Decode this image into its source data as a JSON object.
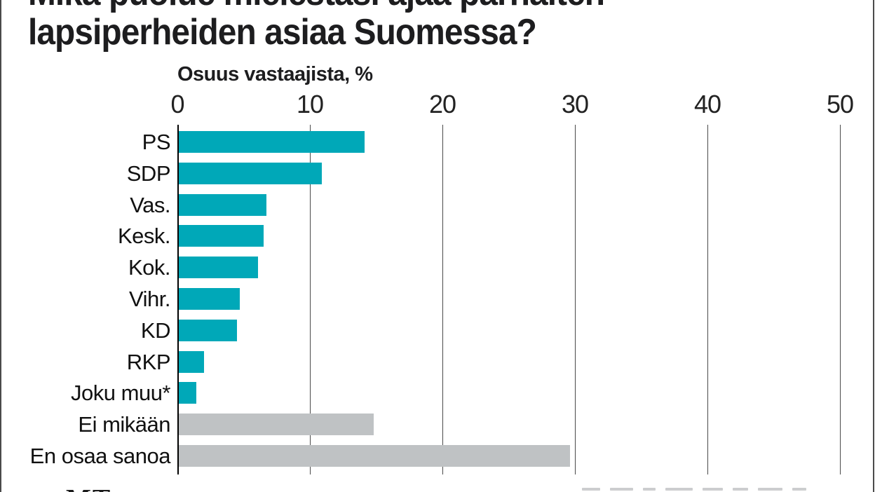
{
  "page": {
    "title_line1": "Mikä puolue mielestäsi ajaa parhaiten",
    "title_line2": "lapsiperheiden asiaa Suomessa?",
    "watermark": "MT"
  },
  "chart_data": {
    "type": "bar",
    "orientation": "horizontal",
    "title": "Mikä puolue mielestäsi ajaa parhaiten lapsiperheiden asiaa Suomessa?",
    "axis_label": "Osuus vastaajista, %",
    "x_ticks": [
      0,
      10,
      20,
      30,
      40,
      50
    ],
    "xlim": [
      0,
      50
    ],
    "grid": true,
    "legend": "none",
    "categories": [
      "PS",
      "SDP",
      "Vas.",
      "Kesk.",
      "Kok.",
      "Vihr.",
      "KD",
      "RKP",
      "Joku muu*",
      "Ei mikään",
      "En osaa sanoa"
    ],
    "values": [
      14,
      10.8,
      6.6,
      6.4,
      6,
      4.6,
      4.4,
      1.9,
      1.3,
      14.7,
      29.5
    ],
    "bar_color_keys": [
      "teal",
      "teal",
      "teal",
      "teal",
      "teal",
      "teal",
      "teal",
      "teal",
      "teal",
      "gray",
      "gray"
    ],
    "colors": {
      "teal": "#00a8b8",
      "gray": "#bfc2c4"
    }
  }
}
